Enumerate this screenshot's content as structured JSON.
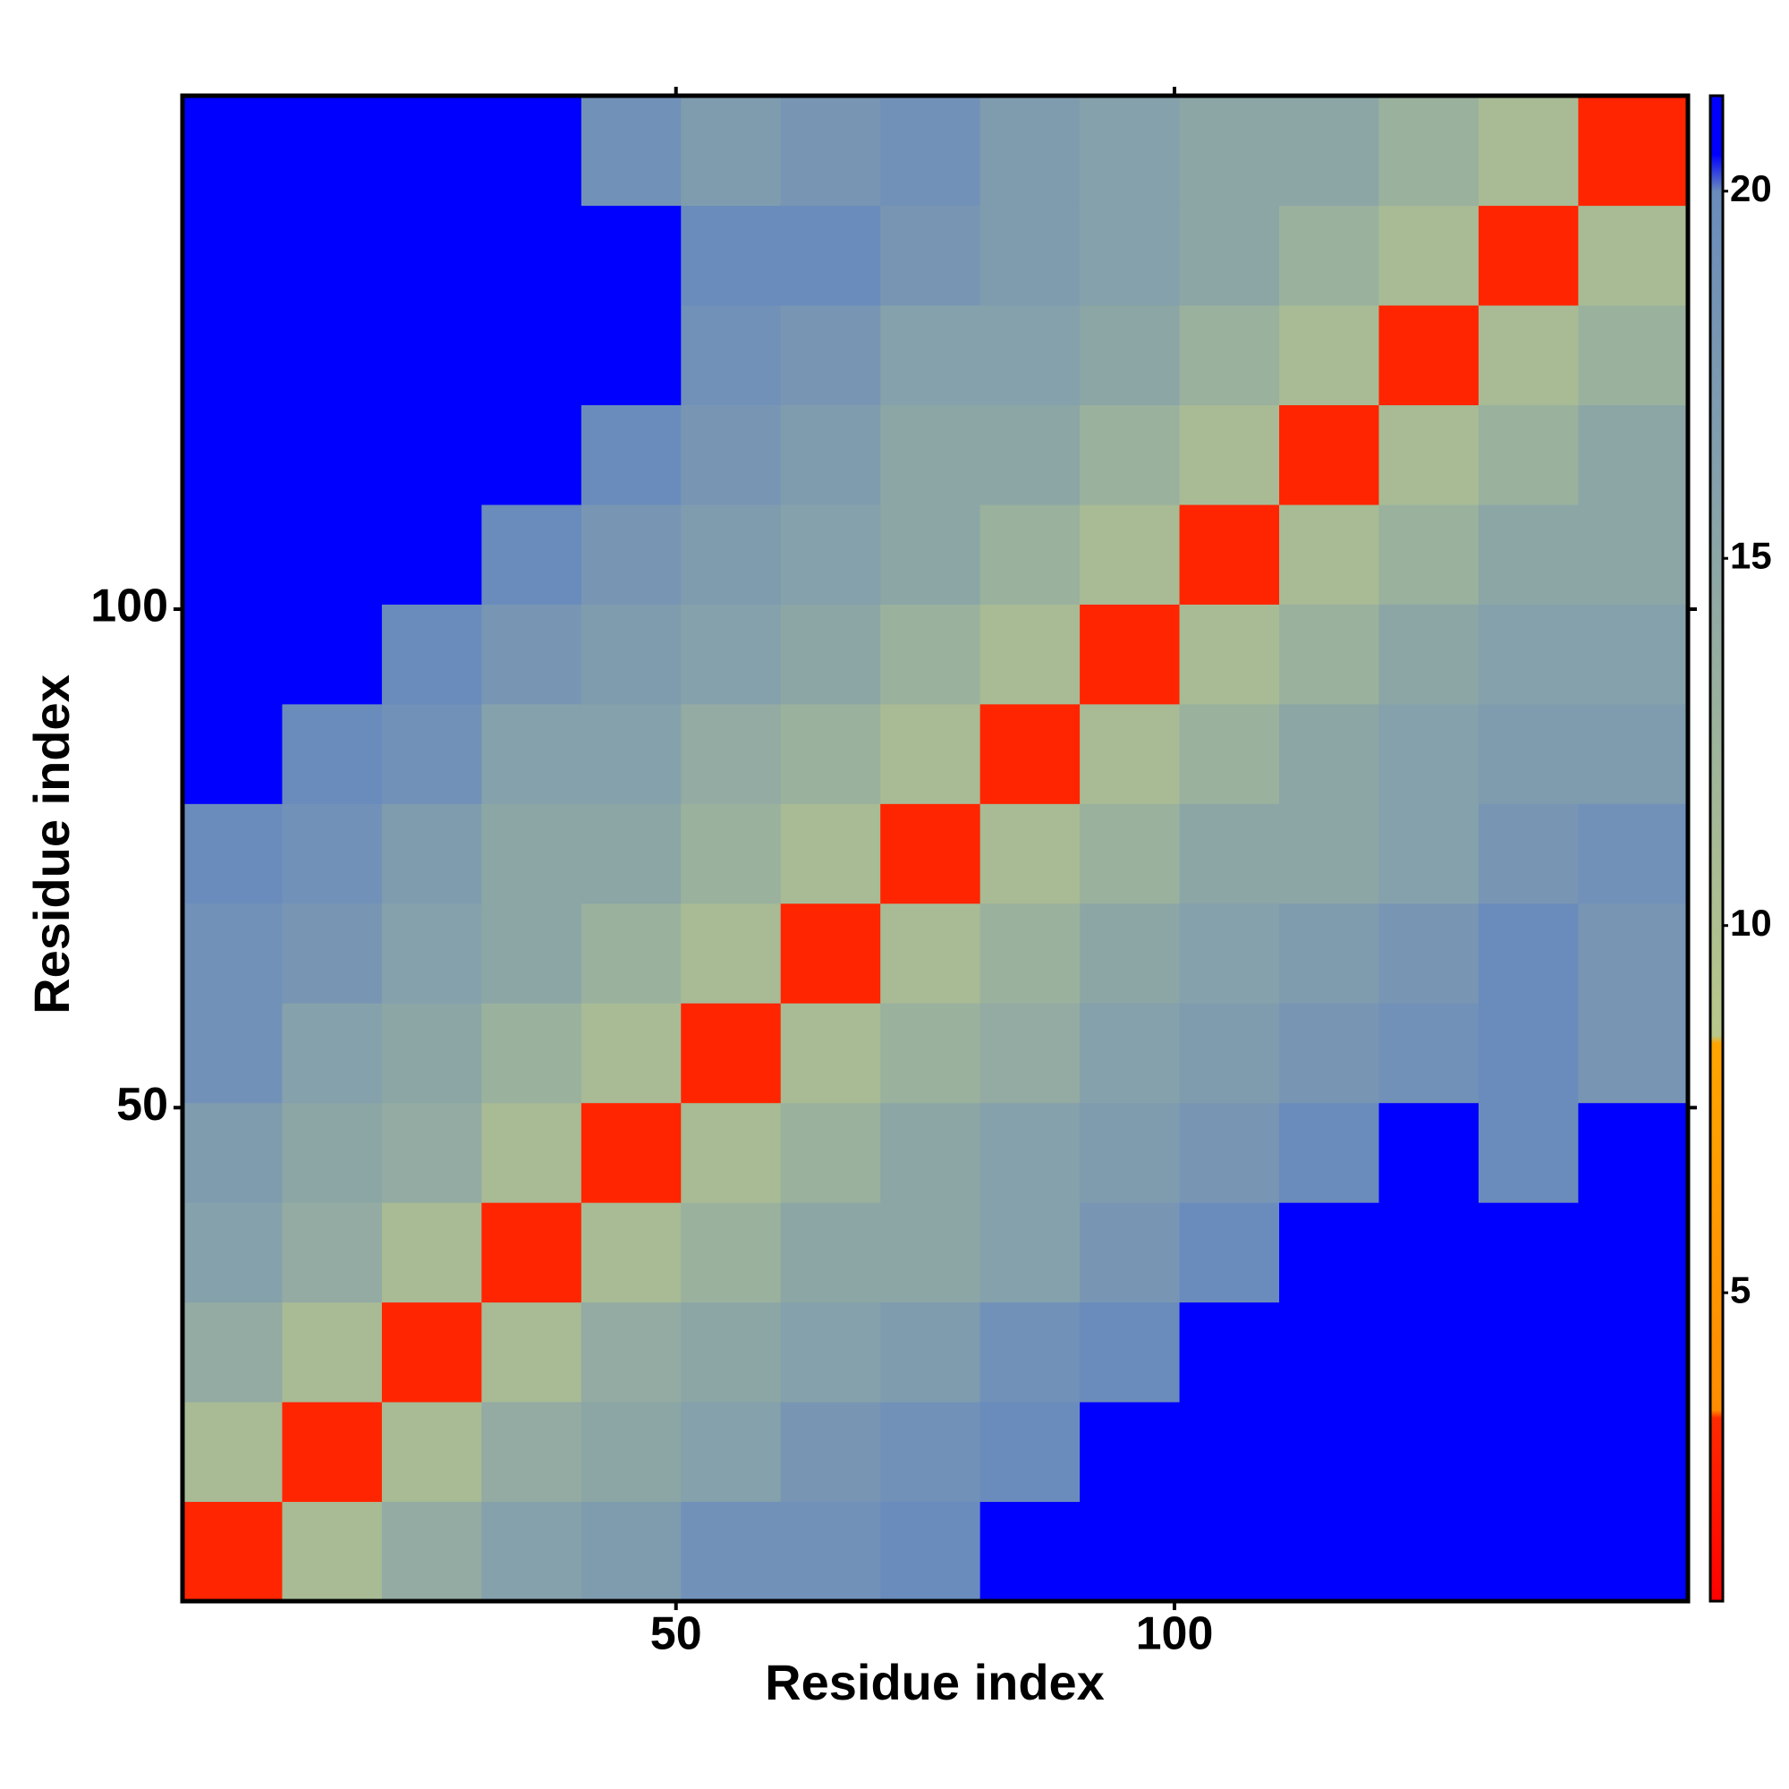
{
  "chart_data": {
    "type": "heatmap",
    "xlabel": "Residue index",
    "ylabel": "Residue index",
    "x_bins": [
      0.5,
      10.5,
      20.5,
      30.5,
      40.5,
      50.5,
      60.5,
      70.5,
      80.5,
      90.5,
      100.5,
      110.5,
      120.5,
      130.5,
      140.5,
      151.5
    ],
    "y_bins": [
      0.5,
      10.5,
      20.5,
      30.5,
      40.5,
      50.5,
      60.5,
      70.5,
      80.5,
      90.5,
      100.5,
      110.5,
      120.5,
      130.5,
      140.5,
      151.5
    ],
    "values": [
      [
        3,
        11,
        14,
        16,
        17,
        19,
        19,
        20,
        21,
        21,
        21,
        21,
        21,
        21,
        21
      ],
      [
        11,
        3,
        11,
        14,
        15,
        16,
        18,
        19,
        20,
        21,
        21,
        21,
        21,
        21,
        21
      ],
      [
        14,
        11,
        3,
        11,
        14,
        15,
        16,
        17,
        19,
        20,
        21,
        21,
        21,
        21,
        21
      ],
      [
        16,
        14,
        11,
        3,
        11,
        13,
        15,
        15,
        16,
        18,
        20,
        21,
        21,
        21,
        21
      ],
      [
        17,
        15,
        14,
        11,
        3,
        11,
        13,
        15,
        16,
        17,
        18,
        20,
        21,
        20,
        21
      ],
      [
        19,
        16,
        15,
        13,
        11,
        3,
        11,
        13,
        14,
        16,
        17,
        18,
        19,
        20,
        18
      ],
      [
        19,
        18,
        16,
        15,
        13,
        11,
        3,
        11,
        13,
        15,
        16,
        17,
        18,
        20,
        18
      ],
      [
        20,
        19,
        17,
        15,
        15,
        13,
        11,
        3,
        11,
        13,
        15,
        15,
        16,
        18,
        19
      ],
      [
        21,
        20,
        19,
        16,
        16,
        14,
        13,
        11,
        3,
        11,
        13,
        15,
        16,
        17,
        17
      ],
      [
        21,
        21,
        20,
        18,
        17,
        16,
        15,
        13,
        11,
        3,
        11,
        13,
        15,
        16,
        16
      ],
      [
        21,
        21,
        21,
        20,
        18,
        17,
        16,
        15,
        13,
        11,
        3,
        11,
        13,
        15,
        15
      ],
      [
        21,
        21,
        21,
        21,
        20,
        18,
        17,
        15,
        15,
        13,
        11,
        3,
        11,
        13,
        15
      ],
      [
        21,
        21,
        21,
        21,
        21,
        19,
        18,
        16,
        16,
        15,
        13,
        11,
        3,
        11,
        13
      ],
      [
        21,
        21,
        21,
        21,
        21,
        20,
        20,
        18,
        17,
        16,
        15,
        13,
        11,
        3,
        11
      ],
      [
        21,
        21,
        21,
        21,
        19,
        17,
        18,
        19,
        17,
        16,
        15,
        15,
        13,
        11,
        3
      ]
    ],
    "xlim": [
      0.5,
      151.5
    ],
    "ylim": [
      0.5,
      151.5
    ],
    "xticks": [
      50,
      100
    ],
    "yticks": [
      50,
      100
    ],
    "zlim": [
      0.8,
      21.3
    ],
    "zticks": [
      5,
      10,
      15,
      20
    ],
    "colorscale": [
      {
        "value": 0.8,
        "color": "#ff0000"
      },
      {
        "value": 3.3,
        "color": "#ff2a00"
      },
      {
        "value": 3.4,
        "color": "#ff8c00"
      },
      {
        "value": 8.4,
        "color": "#ffa500"
      },
      {
        "value": 8.5,
        "color": "#b9c88a"
      },
      {
        "value": 20,
        "color": "#6a8cbc"
      },
      {
        "value": 20.5,
        "color": "#0000ff"
      },
      {
        "value": 21.3,
        "color": "#0000ff"
      }
    ]
  }
}
